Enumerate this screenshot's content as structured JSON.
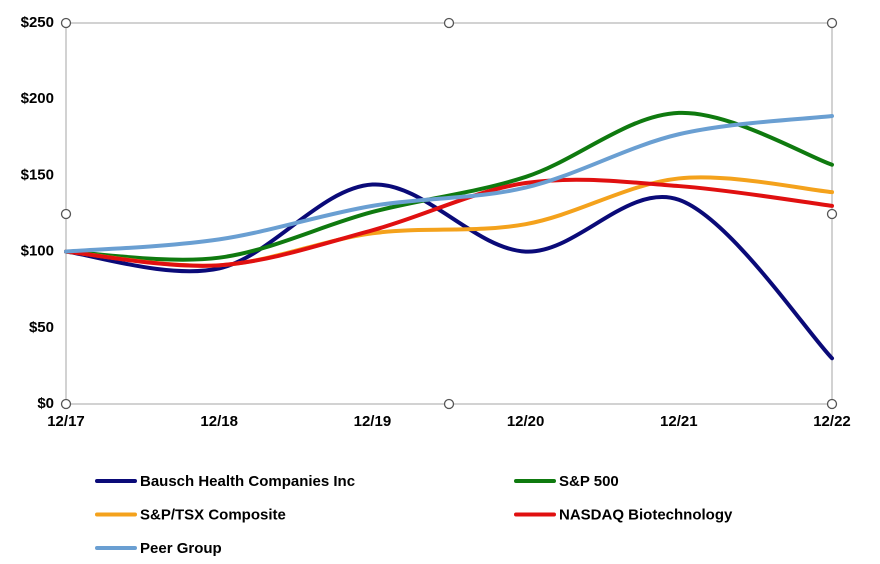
{
  "chart_data": {
    "type": "line",
    "categories": [
      "12/17",
      "12/18",
      "12/19",
      "12/20",
      "12/21",
      "12/22"
    ],
    "series": [
      {
        "name": "Bausch Health Companies Inc",
        "color": "#0a0a78",
        "values": [
          100,
          89,
          144,
          100,
          134,
          30
        ]
      },
      {
        "name": "S&P 500",
        "color": "#0f7a0f",
        "values": [
          100,
          96,
          126,
          149,
          191,
          157
        ]
      },
      {
        "name": "S&P/TSX Composite",
        "color": "#f4a21c",
        "values": [
          100,
          91,
          112,
          118,
          148,
          139
        ]
      },
      {
        "name": "NASDAQ Biotechnology",
        "color": "#e01010",
        "values": [
          100,
          91,
          114,
          145,
          143,
          130
        ]
      },
      {
        "name": "Peer Group",
        "color": "#6a9fd2",
        "values": [
          100,
          108,
          130,
          142,
          177,
          189
        ]
      }
    ],
    "ylim": [
      0,
      250
    ],
    "yticks": [
      {
        "value": 0,
        "label": "$0"
      },
      {
        "value": 50,
        "label": "$50"
      },
      {
        "value": 100,
        "label": "$100"
      },
      {
        "value": 150,
        "label": "$150"
      },
      {
        "value": 200,
        "label": "$200"
      },
      {
        "value": 250,
        "label": "$250"
      }
    ],
    "grid": false
  }
}
